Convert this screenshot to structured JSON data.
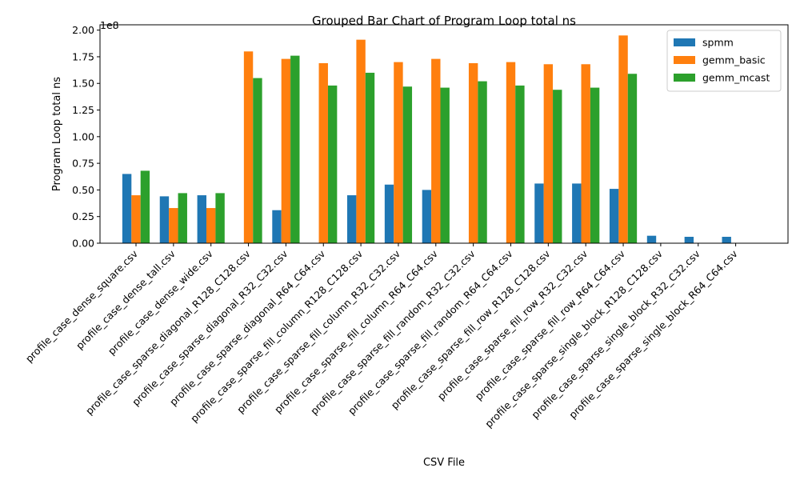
{
  "chart_data": {
    "type": "bar",
    "title": "Grouped Bar Chart of Program Loop total ns",
    "xlabel": "CSV File",
    "ylabel": "Program Loop total ns",
    "y_scale_label": "1e8",
    "y_scale": 100000000,
    "ylim": [
      0,
      205000000
    ],
    "yticks": [
      0,
      25000000,
      50000000,
      75000000,
      100000000,
      125000000,
      150000000,
      175000000,
      200000000
    ],
    "ytick_labels": [
      "0.00",
      "0.25",
      "0.50",
      "0.75",
      "1.00",
      "1.25",
      "1.50",
      "1.75",
      "2.00"
    ],
    "grid": false,
    "legend_position": "top-right",
    "categories": [
      "profile_case_dense_square.csv",
      "profile_case_dense_tall.csv",
      "profile_case_dense_wide.csv",
      "profile_case_sparse_diagonal_R128_C128.csv",
      "profile_case_sparse_diagonal_R32_C32.csv",
      "profile_case_sparse_diagonal_R64_C64.csv",
      "profile_case_sparse_fill_column_R128_C128.csv",
      "profile_case_sparse_fill_column_R32_C32.csv",
      "profile_case_sparse_fill_column_R64_C64.csv",
      "profile_case_sparse_fill_random_R32_C32.csv",
      "profile_case_sparse_fill_random_R64_C64.csv",
      "profile_case_sparse_fill_row_R128_C128.csv",
      "profile_case_sparse_fill_row_R32_C32.csv",
      "profile_case_sparse_fill_row_R64_C64.csv",
      "profile_case_sparse_single_block_R128_C128.csv",
      "profile_case_sparse_single_block_R32_C32.csv",
      "profile_case_sparse_single_block_R64_C64.csv"
    ],
    "series": [
      {
        "name": "spmm",
        "color": "#1f77b4",
        "values": [
          65000000,
          44000000,
          45000000,
          0,
          31000000,
          0,
          45000000,
          55000000,
          50000000,
          0,
          0,
          56000000,
          56000000,
          51000000,
          7000000,
          6000000,
          6000000
        ]
      },
      {
        "name": "gemm_basic",
        "color": "#ff7f0e",
        "values": [
          45000000,
          33000000,
          33000000,
          180000000,
          173000000,
          169000000,
          191000000,
          170000000,
          173000000,
          169000000,
          170000000,
          168000000,
          168000000,
          195000000,
          0,
          0,
          0
        ]
      },
      {
        "name": "gemm_mcast",
        "color": "#2ca02c",
        "values": [
          68000000,
          47000000,
          47000000,
          155000000,
          176000000,
          148000000,
          160000000,
          147000000,
          146000000,
          152000000,
          148000000,
          144000000,
          146000000,
          159000000,
          0,
          0,
          0
        ]
      }
    ]
  }
}
